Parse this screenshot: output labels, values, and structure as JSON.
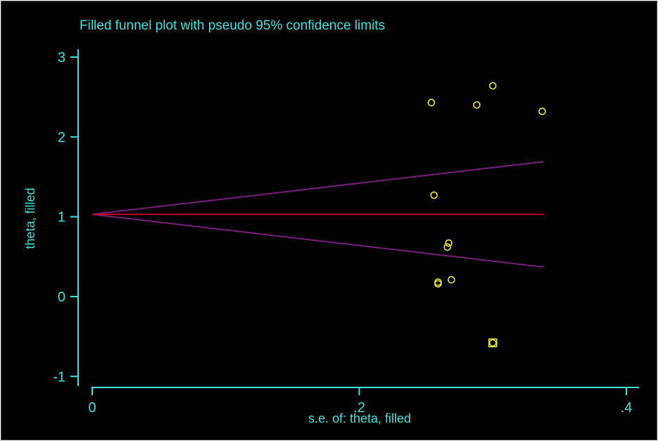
{
  "chart_data": {
    "type": "scatter",
    "title": "Filled funnel plot with pseudo 95% confidence limits",
    "xlabel": "s.e. of: theta, filled",
    "ylabel": "theta, filled",
    "xlim": [
      0,
      0.4
    ],
    "ylim": [
      -1,
      3
    ],
    "x_ticks": [
      0,
      0.2,
      0.4
    ],
    "x_tick_labels": [
      "0",
      ".2",
      ".4"
    ],
    "y_ticks": [
      -1,
      0,
      1,
      2,
      3
    ],
    "y_tick_labels": [
      "-1",
      "0",
      "1",
      "2",
      "3"
    ],
    "pooled_estimate": 1.03,
    "funnel": {
      "se_max": 0.338,
      "upper_at_max": 1.69,
      "lower_at_max": 0.37
    },
    "observed_points": [
      {
        "x": 0.254,
        "y": 2.43
      },
      {
        "x": 0.3,
        "y": 2.64
      },
      {
        "x": 0.288,
        "y": 2.4
      },
      {
        "x": 0.337,
        "y": 2.32
      },
      {
        "x": 0.256,
        "y": 1.27
      },
      {
        "x": 0.267,
        "y": 0.67
      },
      {
        "x": 0.266,
        "y": 0.62
      },
      {
        "x": 0.269,
        "y": 0.21
      },
      {
        "x": 0.259,
        "y": 0.18
      },
      {
        "x": 0.259,
        "y": 0.16
      },
      {
        "x": 0.3,
        "y": -0.58
      }
    ],
    "filled_points": [
      {
        "x": 0.3,
        "y": -0.58
      }
    ],
    "colors": {
      "background": "#000000",
      "axes": "#3fe0e0",
      "points": "#e8e43c",
      "pooled_line": "#c8002a",
      "limits": "#7a1e7e"
    },
    "grid": false
  }
}
